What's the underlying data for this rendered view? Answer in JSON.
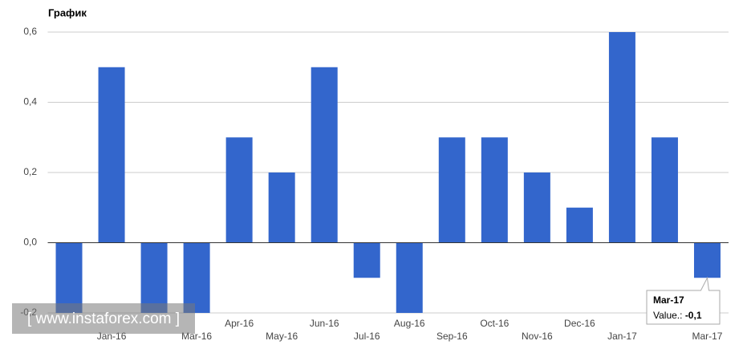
{
  "chart_data": {
    "type": "bar",
    "title": "График",
    "categories": [
      null,
      "Jan-16",
      null,
      "Mar-16",
      "Apr-16",
      "May-16",
      "Jun-16",
      "Jul-16",
      "Aug-16",
      "Sep-16",
      "Oct-16",
      "Nov-16",
      "Dec-16",
      "Jan-17",
      null,
      "Mar-17"
    ],
    "values": [
      -0.2,
      0.5,
      -0.2,
      -0.2,
      0.3,
      0.2,
      0.5,
      -0.1,
      -0.2,
      0.3,
      0.3,
      0.2,
      0.1,
      0.6,
      0.3,
      -0.1
    ],
    "color": "#3366cc",
    "ylim": [
      -0.2,
      0.6
    ],
    "yticks": [
      {
        "value": -0.2,
        "label": "-0,2"
      },
      {
        "value": 0,
        "label": "0,0"
      },
      {
        "value": 0.2,
        "label": "0,2"
      },
      {
        "value": 0.4,
        "label": "0,4"
      },
      {
        "value": 0.6,
        "label": "0,6"
      }
    ],
    "grid": true,
    "tooltip": {
      "category": "Mar-17",
      "label": "Value.:",
      "value": "-0,1"
    },
    "watermark": "[ www.instaforex.com ]"
  }
}
